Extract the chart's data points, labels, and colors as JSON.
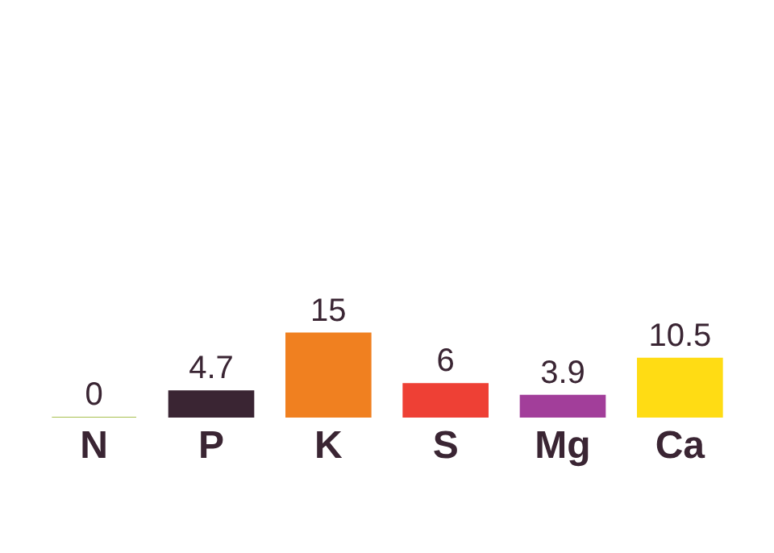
{
  "chart_data": {
    "type": "bar",
    "categories": [
      "N",
      "P",
      "K",
      "S",
      "Mg",
      "Ca"
    ],
    "values": [
      0,
      4.7,
      15,
      6,
      3.9,
      10.5
    ],
    "colors": [
      "#a8c050",
      "#3a2533",
      "#f08020",
      "#ee4035",
      "#a23e9a",
      "#ffdc14"
    ],
    "data_labels": true
  }
}
